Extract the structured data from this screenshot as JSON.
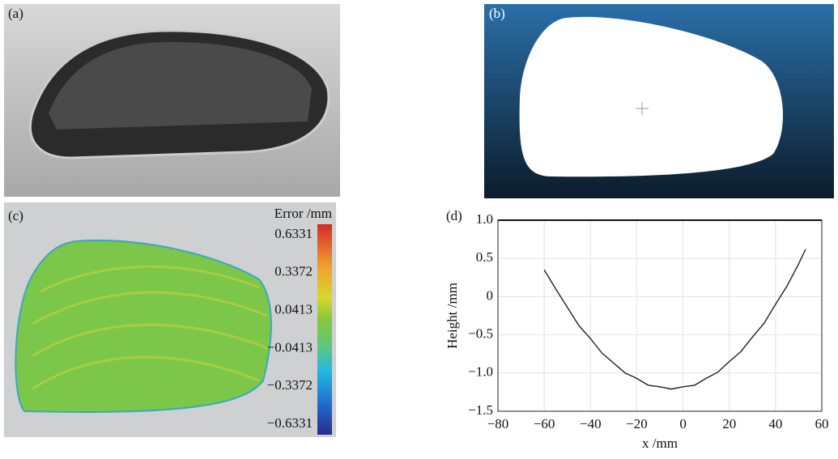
{
  "panels": {
    "a": "(a)",
    "b": "(b)",
    "c": "(c)",
    "d": "(d)"
  },
  "colorbar": {
    "title": "Error /mm",
    "labels": [
      "0.6331",
      "0.3372",
      "0.0413",
      "−0.0413",
      "−0.3372",
      "−0.6331"
    ]
  },
  "chart_data": {
    "type": "line",
    "x_label": "x /mm",
    "y_label": "Height /mm",
    "x": [
      -60,
      -55,
      -50,
      -45,
      -40,
      -35,
      -30,
      -25,
      -20,
      -15,
      -10,
      -5,
      0,
      5,
      10,
      15,
      20,
      25,
      30,
      35,
      40,
      45,
      50,
      53
    ],
    "values": [
      0.35,
      0.1,
      -0.14,
      -0.38,
      -0.55,
      -0.74,
      -0.87,
      -1.0,
      -1.07,
      -1.16,
      -1.18,
      -1.21,
      -1.18,
      -1.16,
      -1.07,
      -0.99,
      -0.85,
      -0.72,
      -0.53,
      -0.35,
      -0.1,
      0.14,
      0.43,
      0.62
    ],
    "color": "#222222",
    "xlim": [
      -80,
      60
    ],
    "ylim": [
      -1.5,
      1.0
    ],
    "xticks": [
      {
        "value": -80,
        "label": "−80"
      },
      {
        "value": -60,
        "label": "−60"
      },
      {
        "value": -40,
        "label": "−40"
      },
      {
        "value": -20,
        "label": "−20"
      },
      0,
      20,
      40,
      60
    ],
    "yticks": [
      {
        "value": 1,
        "label": "1.0"
      },
      0.5,
      0,
      {
        "value": -0.5,
        "label": "−0.5"
      },
      {
        "value": -1,
        "label": "−1.0"
      },
      {
        "value": -1.5,
        "label": "−1.5"
      }
    ],
    "grid": true
  }
}
